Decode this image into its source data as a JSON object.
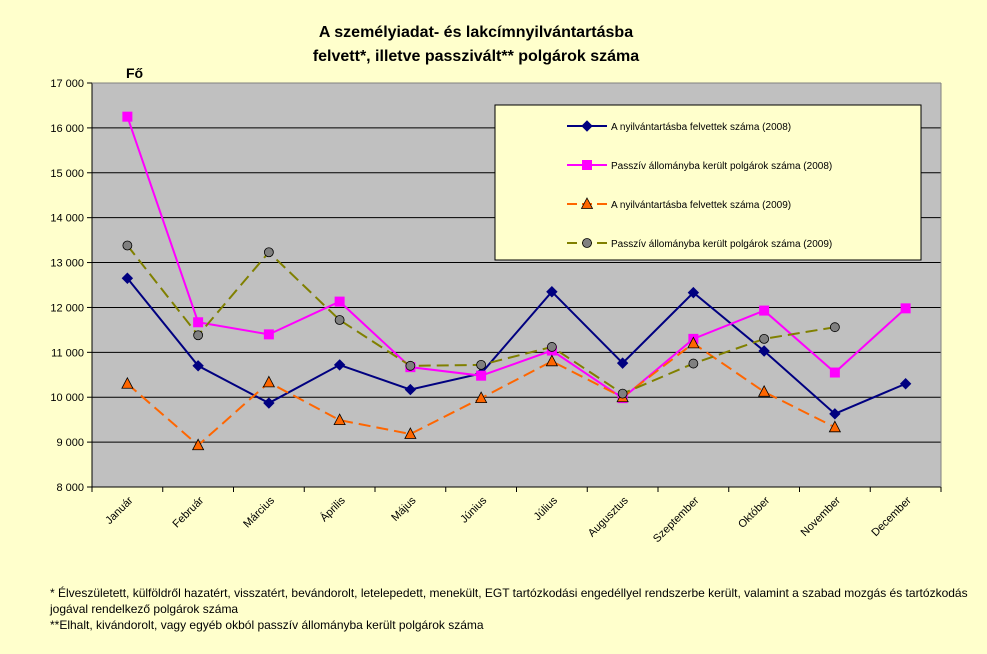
{
  "chart_data": {
    "type": "line",
    "title": [
      "A személyiadat- és lakcímnyilvántartásba",
      "felvett*, illetve passzivált** polgárok száma"
    ],
    "ylabel": "Fő",
    "ylim": [
      8000,
      17000
    ],
    "yticks": [
      8000,
      9000,
      10000,
      11000,
      12000,
      13000,
      14000,
      15000,
      16000,
      17000
    ],
    "ytick_labels": [
      "8 000",
      "9 000",
      "10 000",
      "11 000",
      "12 000",
      "13 000",
      "14 000",
      "15 000",
      "16 000",
      "17 000"
    ],
    "grid": true,
    "legend_position": "top-right",
    "categories": [
      "Január",
      "Február",
      "Március",
      "Április",
      "Május",
      "Június",
      "Július",
      "Augusztus",
      "Szeptember",
      "Október",
      "November",
      "December"
    ],
    "series": [
      {
        "name": "A nyilvántartásba felvettek száma (2008)",
        "color": "#000080",
        "marker": "diamond",
        "dash": "solid",
        "values": [
          12650,
          10700,
          9870,
          10720,
          10170,
          10530,
          12350,
          10760,
          12330,
          11030,
          9630,
          10300
        ]
      },
      {
        "name": "Passzív állományba került polgárok száma (2008)",
        "color": "#FF00FF",
        "marker": "square",
        "dash": "solid",
        "values": [
          16250,
          11670,
          11400,
          12130,
          10670,
          10480,
          11040,
          9980,
          11300,
          11930,
          10550,
          11980
        ]
      },
      {
        "name": "A nyilvántartásba felvettek száma (2009)",
        "color": "#FF6600",
        "marker": "triangle",
        "dash": "dashed",
        "values": [
          10300,
          8930,
          10330,
          9490,
          9180,
          9980,
          10800,
          10000,
          11200,
          10120,
          9330,
          null
        ]
      },
      {
        "name": "Passzív állományba került polgárok száma (2009)",
        "color": "#808000",
        "marker": "circle",
        "dash": "dashed",
        "values": [
          13380,
          11380,
          13230,
          11720,
          10700,
          10720,
          11120,
          10080,
          10750,
          11300,
          11560,
          null
        ]
      }
    ]
  },
  "footnotes": {
    "note1": "* Élveszületett, külföldről hazatért, visszatért, bevándorolt, letelepedett, menekült, EGT tartózkodási engedéllyel rendszerbe került, valamint a szabad mozgás és tartózkodás jogával rendelkező  polgárok száma",
    "note2": "**Elhalt, kivándorolt, vagy egyéb okból passzív állományba került polgárok száma"
  }
}
